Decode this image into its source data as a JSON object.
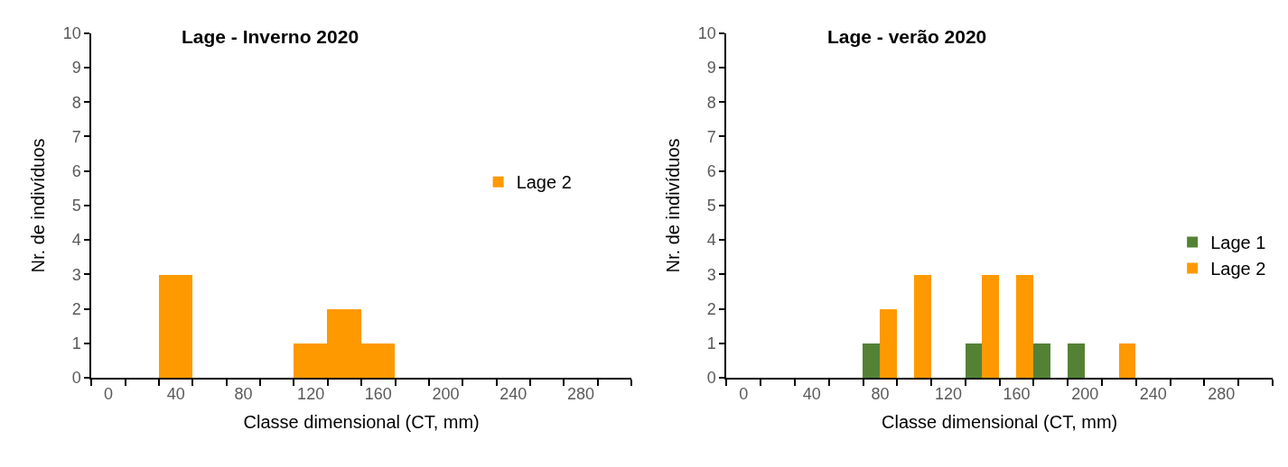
{
  "chart_data": [
    {
      "type": "bar",
      "title": "Lage - Inverno 2020",
      "xlabel": "Classe dimensional (CT, mm)",
      "ylabel": "Nr. de indivíduos",
      "categories": [
        "0",
        null,
        "40",
        null,
        "80",
        null,
        "120",
        null,
        "160",
        null,
        "200",
        null,
        "240",
        null,
        "280",
        null
      ],
      "series": [
        {
          "name": "Lage 2",
          "color": "#ff9900",
          "values": [
            0,
            0,
            3,
            0,
            0,
            0,
            1,
            2,
            1,
            0,
            0,
            0,
            0,
            0,
            0,
            0
          ]
        }
      ],
      "ylim": [
        0,
        10
      ],
      "yticks": [
        0,
        1,
        2,
        3,
        4,
        5,
        6,
        7,
        8,
        9,
        10
      ],
      "legend": "right"
    },
    {
      "type": "bar",
      "title": "Lage - verão 2020",
      "xlabel": "Classe dimensional (CT, mm)",
      "ylabel": "Nr. de indivíduos",
      "categories": [
        "0",
        null,
        "40",
        null,
        "80",
        null,
        "120",
        null,
        "160",
        null,
        "200",
        null,
        "240",
        null,
        "280",
        null
      ],
      "series": [
        {
          "name": "Lage 1",
          "color": "#548235",
          "values": [
            0,
            0,
            0,
            0,
            1,
            0,
            0,
            1,
            0,
            1,
            1,
            0,
            0,
            0,
            0,
            0
          ]
        },
        {
          "name": "Lage 2",
          "color": "#ff9900",
          "values": [
            0,
            0,
            0,
            0,
            2,
            3,
            0,
            3,
            3,
            0,
            0,
            1,
            0,
            0,
            0,
            0
          ]
        }
      ],
      "ylim": [
        0,
        10
      ],
      "yticks": [
        0,
        1,
        2,
        3,
        4,
        5,
        6,
        7,
        8,
        9,
        10
      ],
      "legend": "bottom right"
    }
  ]
}
